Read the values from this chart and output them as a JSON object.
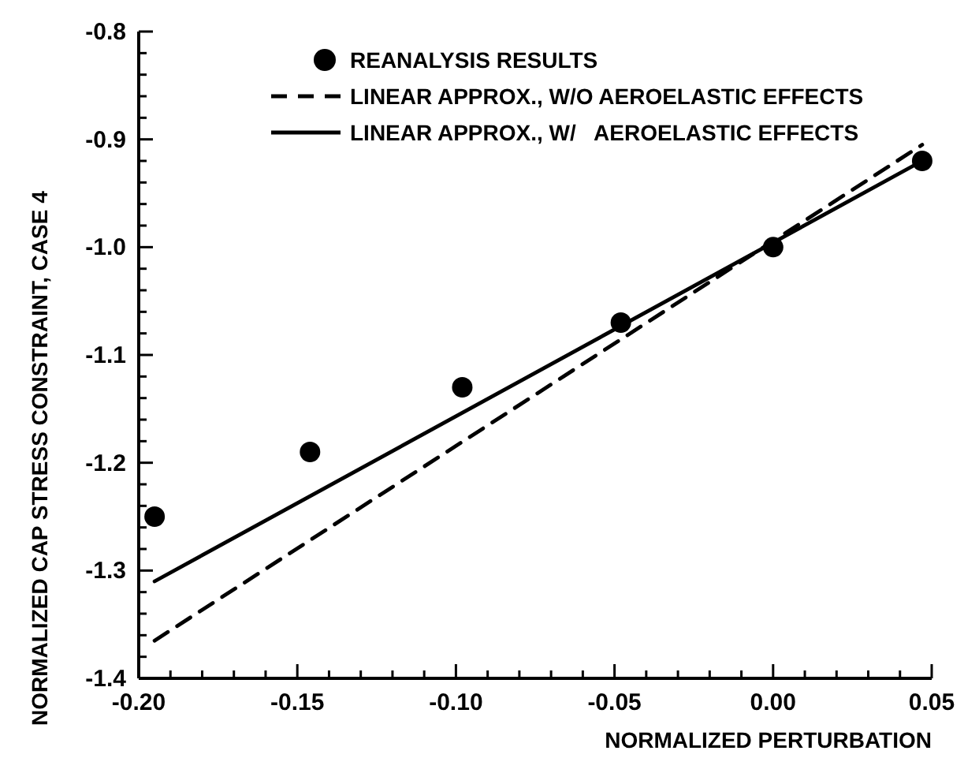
{
  "chart_data": {
    "type": "scatter",
    "xlabel": "NORMALIZED PERTURBATION",
    "ylabel": "NORMALIZED CAP STRESS CONSTRAINT, CASE 4",
    "xlim": [
      -0.2,
      0.05
    ],
    "ylim": [
      -1.4,
      -0.8
    ],
    "xticks": [
      {
        "value": -0.2,
        "label": "-0.20"
      },
      {
        "value": -0.19,
        "label": null
      },
      {
        "value": -0.18,
        "label": null
      },
      {
        "value": -0.17,
        "label": null
      },
      {
        "value": -0.16,
        "label": null
      },
      {
        "value": -0.15,
        "label": "-0.15"
      },
      {
        "value": -0.14,
        "label": null
      },
      {
        "value": -0.13,
        "label": null
      },
      {
        "value": -0.12,
        "label": null
      },
      {
        "value": -0.11,
        "label": null
      },
      {
        "value": -0.1,
        "label": "-0.10"
      },
      {
        "value": -0.09,
        "label": null
      },
      {
        "value": -0.08,
        "label": null
      },
      {
        "value": -0.07,
        "label": null
      },
      {
        "value": -0.06,
        "label": null
      },
      {
        "value": -0.05,
        "label": "-0.05"
      },
      {
        "value": -0.04,
        "label": null
      },
      {
        "value": -0.03,
        "label": null
      },
      {
        "value": -0.02,
        "label": null
      },
      {
        "value": -0.01,
        "label": null
      },
      {
        "value": 0,
        "label": "0.00"
      },
      {
        "value": 0.01,
        "label": null
      },
      {
        "value": 0.02,
        "label": null
      },
      {
        "value": 0.03,
        "label": null
      },
      {
        "value": 0.04,
        "label": null
      },
      {
        "value": 0.05,
        "label": "0.05"
      }
    ],
    "yticks": [
      {
        "value": -1.4,
        "label": "-1.4"
      },
      {
        "value": -1.38,
        "label": null
      },
      {
        "value": -1.36,
        "label": null
      },
      {
        "value": -1.34,
        "label": null
      },
      {
        "value": -1.32,
        "label": null
      },
      {
        "value": -1.3,
        "label": "-1.3"
      },
      {
        "value": -1.28,
        "label": null
      },
      {
        "value": -1.26,
        "label": null
      },
      {
        "value": -1.24,
        "label": null
      },
      {
        "value": -1.22,
        "label": null
      },
      {
        "value": -1.2,
        "label": "-1.2"
      },
      {
        "value": -1.18,
        "label": null
      },
      {
        "value": -1.16,
        "label": null
      },
      {
        "value": -1.14,
        "label": null
      },
      {
        "value": -1.12,
        "label": null
      },
      {
        "value": -1.1,
        "label": "-1.1"
      },
      {
        "value": -1.08,
        "label": null
      },
      {
        "value": -1.06,
        "label": null
      },
      {
        "value": -1.04,
        "label": null
      },
      {
        "value": -1.02,
        "label": null
      },
      {
        "value": -1.0,
        "label": "-1.0"
      },
      {
        "value": -0.98,
        "label": null
      },
      {
        "value": -0.96,
        "label": null
      },
      {
        "value": -0.94,
        "label": null
      },
      {
        "value": -0.92,
        "label": null
      },
      {
        "value": -0.9,
        "label": "-0.9"
      },
      {
        "value": -0.88,
        "label": null
      },
      {
        "value": -0.86,
        "label": null
      },
      {
        "value": -0.84,
        "label": null
      },
      {
        "value": -0.82,
        "label": null
      },
      {
        "value": -0.8,
        "label": "-0.8"
      }
    ],
    "grid": false,
    "legend": "top right",
    "series": [
      {
        "name": "REANALYSIS RESULTS",
        "marker": "circle",
        "color": "#000000",
        "x": [
          -0.195,
          -0.146,
          -0.098,
          -0.048,
          0.0,
          0.047
        ],
        "values": [
          -1.25,
          -1.19,
          -1.13,
          -1.07,
          -1.0,
          -0.92
        ]
      },
      {
        "name": "LINEAR APPROX., W/O AEROELASTIC EFFECTS",
        "type": "line",
        "line_style": "dashed",
        "marker": "none",
        "color": "#000000",
        "x": [
          -0.195,
          0.047
        ],
        "values": [
          -1.365,
          -0.905
        ]
      },
      {
        "name": "LINEAR APPROX., W/   AEROELASTIC EFFECTS",
        "type": "line",
        "line_style": "solid",
        "marker": "none",
        "color": "#000000",
        "x": [
          -0.195,
          0.047
        ],
        "values": [
          -1.31,
          -0.92
        ]
      }
    ]
  }
}
